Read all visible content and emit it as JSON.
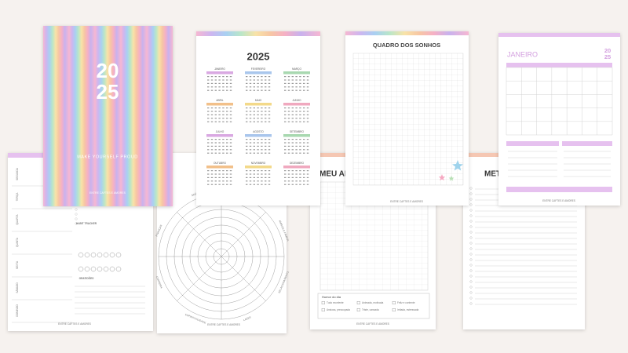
{
  "brand": "ENTRE CAFTES E AMORES",
  "cover": {
    "year_top": "20",
    "year_bottom": "25",
    "motto": "MAKE YOURSELF PROUD"
  },
  "calendar": {
    "title": "2025",
    "months": [
      "JANEIRO",
      "FEVEREIRO",
      "MARÇO",
      "ABRIL",
      "MAIO",
      "JUNHO",
      "JULHO",
      "AGOSTO",
      "SETEMBRO",
      "OUTUBRO",
      "NOVEMBRO",
      "DEZEMBRO"
    ]
  },
  "dream_board": {
    "title": "QUADRO DOS SONHOS"
  },
  "january": {
    "title": "JANEIRO",
    "year_top": "20",
    "year_bottom": "25"
  },
  "weekly": {
    "days": [
      "SEGUNDA",
      "TERÇA",
      "QUARTA",
      "QUINTA",
      "SEXTA",
      "SÁBADO",
      "DOMINGO"
    ],
    "habit": "HABIT TRACKER",
    "gratitude": "GRATIDÕES"
  },
  "wheel": {
    "labels": [
      "CRESCIMENTO PESSOAL",
      "AMIGOS E FAMÍLIA",
      "RELACIONAMENTO",
      "LAZER",
      "ESPIRITUALIDADE",
      "CARREIRA",
      "FINANÇAS",
      "SAÚDE"
    ]
  },
  "year": {
    "title": "MEU ANO",
    "mood": "Humor do dia",
    "options": [
      "Tudo excelente",
      "Animada, motivada",
      "Feliz e contente",
      "Ansiosa, preocupada",
      "Triste, cansada",
      "Irritada, estressada"
    ]
  },
  "goals": {
    "title": "METAS"
  }
}
